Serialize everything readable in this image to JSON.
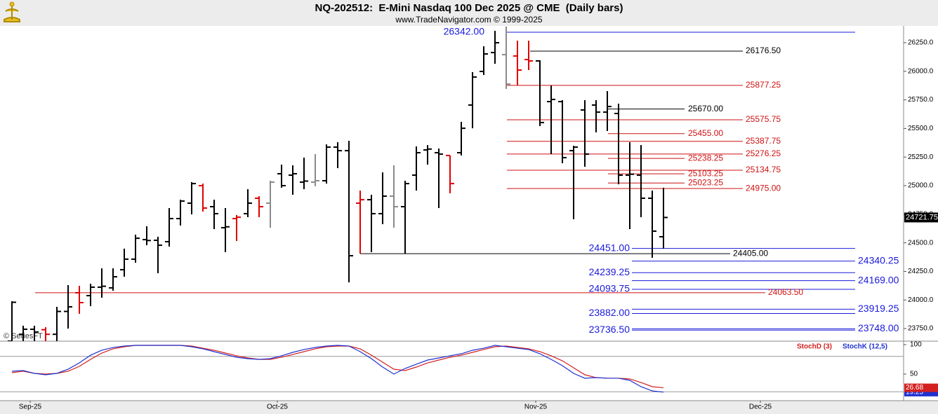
{
  "chart_data": [
    {
      "type": "ohlc",
      "title": "NQ-202512:  E-Mini Nasdaq 100 Dec 2025 @ CME  (Daily bars)",
      "subtitle": "www.TradeNavigator.com © 1999-2025",
      "watermark": "© SeriesFT",
      "x": [
        0,
        1,
        2,
        3,
        4,
        5,
        6,
        7,
        8,
        9,
        10,
        11,
        12,
        13,
        14,
        15,
        16,
        17,
        18,
        19,
        20,
        21,
        22,
        23,
        24,
        25,
        26,
        27,
        28,
        29,
        30,
        31,
        32,
        33,
        34,
        35,
        36,
        37,
        38,
        39,
        40,
        41,
        42,
        43,
        44,
        45,
        46,
        47,
        48,
        49,
        50,
        51,
        52,
        53,
        54,
        55,
        56,
        57,
        58
      ],
      "open": [
        23640,
        23700,
        23744,
        23740,
        23700,
        23900,
        24063,
        24038,
        24112,
        24106,
        24265,
        24357,
        24528,
        24522,
        24510,
        24712,
        24847,
        25000,
        24816,
        24632,
        24712,
        24755,
        24890,
        24847,
        25104,
        25092,
        25031,
        25031,
        25043,
        25337,
        25306,
        24847,
        24877,
        24755,
        24908,
        24816,
        25092,
        25312,
        25288,
        25264,
        25288,
        25705,
        25999,
        26164,
        26146,
        26134,
        26103,
        26091,
        25735,
        25735,
        25306,
        25662,
        25705,
        25643,
        25631,
        25092,
        25092,
        24890,
        24553
      ],
      "high": [
        23989,
        23775,
        23775,
        23762,
        23940,
        24130,
        24124,
        24142,
        24277,
        24277,
        24449,
        24571,
        24645,
        24553,
        24804,
        24877,
        25031,
        25018,
        24877,
        24804,
        24743,
        24969,
        24908,
        25043,
        25184,
        25178,
        25245,
        25276,
        25361,
        25380,
        25392,
        24957,
        24920,
        25116,
        25178,
        25043,
        25343,
        25355,
        25325,
        25264,
        25558,
        25993,
        26219,
        26354,
        26391,
        26268,
        26268,
        26097,
        25876,
        25748,
        25349,
        25748,
        25748,
        25827,
        25717,
        25380,
        25355,
        24957,
        24982
      ],
      "low": [
        23600,
        23620,
        23630,
        23640,
        23640,
        23750,
        23879,
        23946,
        24020,
        24081,
        24203,
        24326,
        24479,
        24234,
        24467,
        24651,
        24749,
        24773,
        24620,
        24418,
        24516,
        24724,
        24724,
        24632,
        24982,
        24920,
        24969,
        24995,
        25018,
        25153,
        24154,
        24406,
        24418,
        24663,
        24632,
        24406,
        24957,
        25184,
        24804,
        24933,
        25264,
        25502,
        25968,
        26066,
        25846,
        25876,
        26011,
        25521,
        25276,
        25196,
        24706,
        25165,
        25466,
        25478,
        25012,
        24620,
        24724,
        24369,
        24449
      ],
      "close": [
        23980,
        23744,
        23720,
        23700,
        23900,
        23940,
        23977,
        24112,
        24120,
        24203,
        24357,
        24540,
        24520,
        24479,
        24712,
        24865,
        25018,
        24804,
        24755,
        24640,
        24724,
        24847,
        24816,
        25031,
        25000,
        25104,
        25040,
        25043,
        25337,
        25306,
        24387,
        24877,
        24755,
        24908,
        24816,
        25018,
        25288,
        25320,
        25276,
        25018,
        25502,
        25950,
        26152,
        26250,
        25888,
        26011,
        26091,
        25552,
        25754,
        25245,
        25337,
        25276,
        25643,
        25692,
        25092,
        25100,
        24890,
        24602,
        24721.75
      ],
      "bar_colors": [
        "#000000",
        "#000000",
        "#000000",
        "#e00000",
        "#000000",
        "#000000",
        "#e00000",
        "#000000",
        "#000000",
        "#000000",
        "#000000",
        "#000000",
        "#000000",
        "#000000",
        "#000000",
        "#000000",
        "#000000",
        "#e00000",
        "#000000",
        "#000000",
        "#e00000",
        "#000000",
        "#e00000",
        "#8a8a8a",
        "#000000",
        "#000000",
        "#000000",
        "#8a8a8a",
        "#000000",
        "#000000",
        "#000000",
        "#e00000",
        "#000000",
        "#000000",
        "#8a8a8a",
        "#000000",
        "#000000",
        "#000000",
        "#000000",
        "#e00000",
        "#000000",
        "#000000",
        "#000000",
        "#000000",
        "#8a8a8a",
        "#e00000",
        "#e00000",
        "#000000",
        "#000000",
        "#000000",
        "#000000",
        "#000000",
        "#000000",
        "#000000",
        "#000000",
        "#000000",
        "#000000",
        "#000000",
        "#000000"
      ],
      "xlim": [
        -1.0625,
        79.375
      ],
      "ylim": [
        23640,
        26397
      ],
      "yticks": [
        {
          "value": 23750,
          "label": "23750.0"
        },
        {
          "value": 24000,
          "label": "24000.0"
        },
        {
          "value": 24250,
          "label": "24250.0"
        },
        {
          "value": 24500,
          "label": "24500.0"
        },
        {
          "value": 24750,
          "label": "24750.0"
        },
        {
          "value": 25000,
          "label": "25000.0"
        },
        {
          "value": 25250,
          "label": "25250.0"
        },
        {
          "value": 25500,
          "label": "25500.0"
        },
        {
          "value": 25750,
          "label": "25750.0"
        },
        {
          "value": 26000,
          "label": "26000.0"
        },
        {
          "value": 26250,
          "label": "26250.0"
        }
      ],
      "levels": [
        {
          "value": 26342,
          "label": "26342.00",
          "color": "#1a1adc"
        },
        {
          "value": 26176.5,
          "label": "26176.50",
          "color": "#000000"
        },
        {
          "value": 25877.25,
          "label": "25877.25",
          "color": "#d01010"
        },
        {
          "value": 25670,
          "label": "25670.00",
          "color": "#000000"
        },
        {
          "value": 25575.75,
          "label": "25575.75",
          "color": "#d01010"
        },
        {
          "value": 25455,
          "label": "25455.00",
          "color": "#d01010"
        },
        {
          "value": 25387.75,
          "label": "25387.75",
          "color": "#d01010"
        },
        {
          "value": 25276.25,
          "label": "25276.25",
          "color": "#d01010"
        },
        {
          "value": 25238.25,
          "label": "25238.25",
          "color": "#d01010"
        },
        {
          "value": 25134.75,
          "label": "25134.75",
          "color": "#d01010"
        },
        {
          "value": 25103.25,
          "label": "25103.25",
          "color": "#d01010"
        },
        {
          "value": 25023.25,
          "label": "25023.25",
          "color": "#d01010"
        },
        {
          "value": 24975,
          "label": "24975.00",
          "color": "#d01010"
        },
        {
          "value": 24451,
          "label": "24451.00",
          "color": "#1a1adc"
        },
        {
          "value": 24405,
          "label": "24405.00",
          "color": "#000000"
        },
        {
          "value": 24340.25,
          "label": "24340.25",
          "color": "#1a1adc"
        },
        {
          "value": 24239.25,
          "label": "24239.25",
          "color": "#1a1adc"
        },
        {
          "value": 24169,
          "label": "24169.00",
          "color": "#1a1adc"
        },
        {
          "value": 24093.75,
          "label": "24093.75",
          "color": "#1a1adc"
        },
        {
          "value": 24063.5,
          "label": "24063.50",
          "color": "#d01010"
        },
        {
          "value": 23919.25,
          "label": "23919.25",
          "color": "#1a1adc"
        },
        {
          "value": 23882,
          "label": "23882.00",
          "color": "#1a1adc"
        },
        {
          "value": 23748,
          "label": "23748.00",
          "color": "#1a1adc"
        },
        {
          "value": 23736.5,
          "label": "23736.50",
          "color": "#1a1adc"
        }
      ]
    },
    {
      "type": "line",
      "x": [
        0,
        1,
        2,
        3,
        4,
        5,
        6,
        7,
        8,
        9,
        10,
        11,
        12,
        13,
        14,
        15,
        16,
        17,
        18,
        19,
        20,
        21,
        22,
        23,
        24,
        25,
        26,
        27,
        28,
        29,
        30,
        31,
        32,
        33,
        34,
        35,
        36,
        37,
        38,
        39,
        40,
        41,
        42,
        43,
        44,
        45,
        46,
        47,
        48,
        49,
        50,
        51,
        52,
        53,
        54,
        55,
        56,
        57,
        58
      ],
      "series": [
        {
          "name": "StochD (3)",
          "color": "#d42020",
          "values": [
            52.4,
            54.8,
            51.2,
            50,
            51.2,
            54.8,
            63.1,
            75,
            85.7,
            92.9,
            96.4,
            98.8,
            98.8,
            98.8,
            98.8,
            98.8,
            97.6,
            94,
            90.5,
            85.7,
            81,
            77.4,
            75,
            75,
            78.6,
            83.3,
            88.1,
            92.9,
            96.4,
            97.6,
            97.6,
            92.9,
            82.1,
            70.2,
            58.3,
            56,
            61.9,
            69,
            73.8,
            78.6,
            82.1,
            86.9,
            91.7,
            96.4,
            97.6,
            95.2,
            92.9,
            88.1,
            81,
            72.6,
            60.7,
            48.8,
            44,
            42.9,
            42.9,
            41.7,
            35.7,
            28.6,
            26.68
          ]
        },
        {
          "name": "StochK (12,5)",
          "color": "#2030d0",
          "values": [
            54.8,
            56,
            51.2,
            48.8,
            51.2,
            58.3,
            69,
            82.1,
            90.5,
            95.2,
            97.6,
            98.8,
            98.8,
            98.8,
            98.8,
            98.8,
            96.4,
            92.9,
            88.1,
            83.3,
            78.6,
            76.2,
            75,
            76.2,
            81,
            86.9,
            91.7,
            95.2,
            97.6,
            98.8,
            97.6,
            88.1,
            76.2,
            61.9,
            50,
            59.5,
            66.7,
            73.8,
            77.4,
            81,
            84.5,
            90.5,
            94,
            98.8,
            96.4,
            94,
            91.7,
            84.5,
            75,
            64.3,
            51.2,
            42.9,
            44,
            42.9,
            42.9,
            39.3,
            28.6,
            21.4,
            19.25
          ]
        }
      ],
      "xlim": [
        -1.0625,
        79.375
      ],
      "xticks": [
        {
          "value": 2,
          "label": "Sep-25"
        },
        {
          "value": 24,
          "label": "Oct-25"
        },
        {
          "value": 47,
          "label": "Nov-25"
        },
        {
          "value": 67,
          "label": "Dec-25"
        }
      ],
      "ylim": [
        4.76,
        105.95
      ],
      "yticks": [
        100,
        50
      ],
      "levels": [
        80,
        20
      ]
    }
  ]
}
